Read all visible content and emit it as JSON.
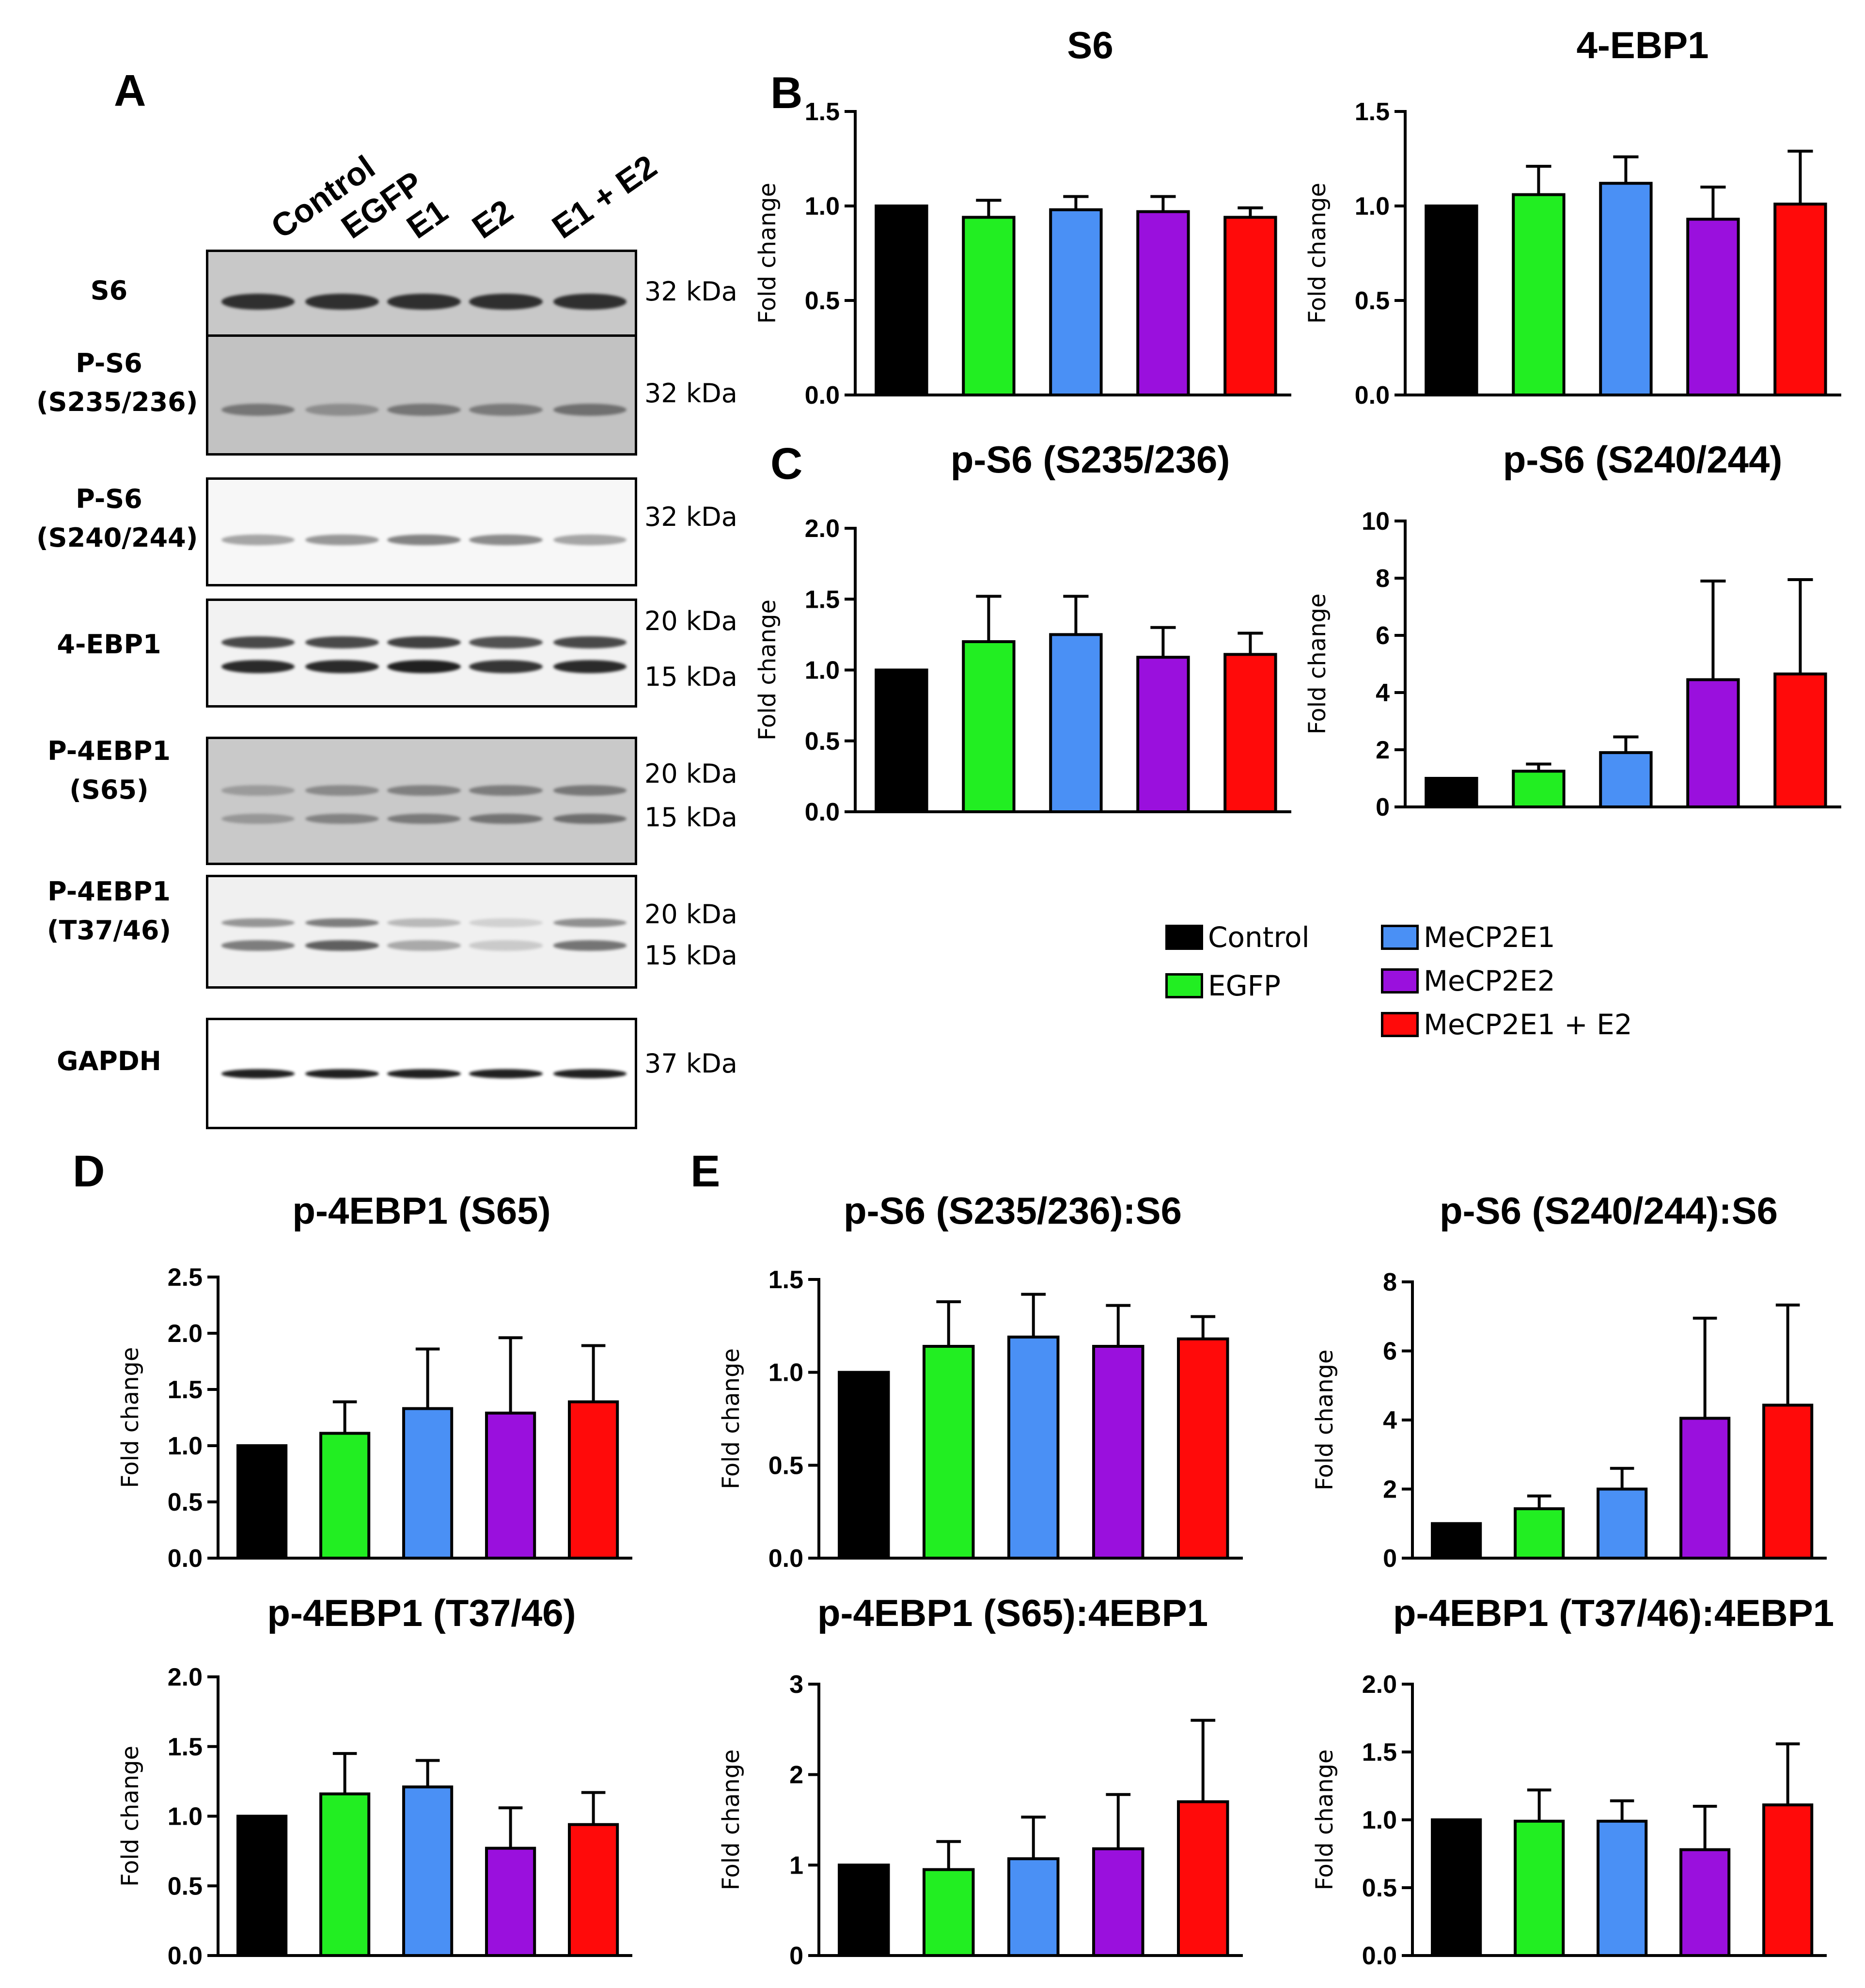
{
  "panels": {
    "a": "A",
    "b": "B",
    "c": "C",
    "d": "D",
    "e": "E"
  },
  "colors": {
    "control": "#000000",
    "egfp": "#22ee22",
    "e1": "#4a90f5",
    "e2": "#9a10dd",
    "e1e2": "#ff0a0a"
  },
  "lanes": [
    "Control",
    "EGFP",
    "E1",
    "E2",
    "E1 + E2"
  ],
  "blots": [
    {
      "label": "S6",
      "kda": [
        "32 kDa"
      ]
    },
    {
      "label": "P-S6\n(S235/236)",
      "kda": [
        "32 kDa"
      ]
    },
    {
      "label": "P-S6\n(S240/244)",
      "kda": [
        "32 kDa"
      ]
    },
    {
      "label": "4-EBP1",
      "kda": [
        "20 kDa",
        "15 kDa"
      ]
    },
    {
      "label": "P-4EBP1\n(S65)",
      "kda": [
        "20 kDa",
        "15 kDa"
      ]
    },
    {
      "label": "P-4EBP1\n(T37/46)",
      "kda": [
        "20 kDa",
        "15 kDa"
      ]
    },
    {
      "label": "GAPDH",
      "kda": [
        "37 kDa"
      ]
    }
  ],
  "legend": [
    "Control",
    "EGFP",
    "MeCP2E1",
    "MeCP2E2",
    "MeCP2E1 + E2"
  ],
  "chart_data": [
    {
      "id": "s6",
      "type": "bar",
      "title": "S6",
      "ylabel": "Fold change",
      "categories": [
        "Control",
        "EGFP",
        "MeCP2E1",
        "MeCP2E2",
        "MeCP2E1 + E2"
      ],
      "values": [
        1.0,
        0.94,
        0.98,
        0.97,
        0.94
      ],
      "errors": [
        0,
        0.09,
        0.07,
        0.08,
        0.05
      ],
      "ylim": [
        0,
        1.5
      ],
      "yticks": [
        "0.0",
        "0.5",
        "1.0",
        "1.5"
      ]
    },
    {
      "id": "ebp1",
      "type": "bar",
      "title": "4-EBP1",
      "ylabel": "Fold change",
      "categories": [
        "Control",
        "EGFP",
        "MeCP2E1",
        "MeCP2E2",
        "MeCP2E1 + E2"
      ],
      "values": [
        1.0,
        1.06,
        1.12,
        0.93,
        1.01
      ],
      "errors": [
        0,
        0.15,
        0.14,
        0.17,
        0.28
      ],
      "ylim": [
        0,
        1.5
      ],
      "yticks": [
        "0.0",
        "0.5",
        "1.0",
        "1.5"
      ]
    },
    {
      "id": "ps6a",
      "type": "bar",
      "title": "p-S6 (S235/236)",
      "ylabel": "Fold change",
      "categories": [
        "Control",
        "EGFP",
        "MeCP2E1",
        "MeCP2E2",
        "MeCP2E1 + E2"
      ],
      "values": [
        1.0,
        1.2,
        1.25,
        1.09,
        1.11
      ],
      "errors": [
        0,
        0.32,
        0.27,
        0.21,
        0.15
      ],
      "ylim": [
        0,
        2.0
      ],
      "yticks": [
        "0.0",
        "0.5",
        "1.0",
        "1.5",
        "2.0"
      ]
    },
    {
      "id": "ps6b",
      "type": "bar",
      "title": "p-S6 (S240/244)",
      "ylabel": "Fold change",
      "categories": [
        "Control",
        "EGFP",
        "MeCP2E1",
        "MeCP2E2",
        "MeCP2E1 + E2"
      ],
      "values": [
        1.0,
        1.25,
        1.9,
        4.45,
        4.65
      ],
      "errors": [
        0,
        0.25,
        0.55,
        3.45,
        3.3
      ],
      "ylim": [
        0,
        10
      ],
      "yticks": [
        "0",
        "2",
        "4",
        "6",
        "8",
        "10"
      ]
    },
    {
      "id": "p4s65",
      "type": "bar",
      "title": "p-4EBP1 (S65)",
      "ylabel": "Fold change",
      "categories": [
        "Control",
        "EGFP",
        "MeCP2E1",
        "MeCP2E2",
        "MeCP2E1 + E2"
      ],
      "values": [
        1.0,
        1.11,
        1.33,
        1.29,
        1.39
      ],
      "errors": [
        0,
        0.28,
        0.53,
        0.67,
        0.5
      ],
      "ylim": [
        0,
        2.5
      ],
      "yticks": [
        "0.0",
        "0.5",
        "1.0",
        "1.5",
        "2.0",
        "2.5"
      ]
    },
    {
      "id": "ps6a_s6",
      "type": "bar",
      "title": "p-S6 (S235/236):S6",
      "ylabel": "Fold change",
      "categories": [
        "Control",
        "EGFP",
        "MeCP2E1",
        "MeCP2E2",
        "MeCP2E1 + E2"
      ],
      "values": [
        1.0,
        1.14,
        1.19,
        1.14,
        1.18
      ],
      "errors": [
        0,
        0.24,
        0.23,
        0.22,
        0.12
      ],
      "ylim": [
        0,
        1.5
      ],
      "yticks": [
        "0.0",
        "0.5",
        "1.0",
        "1.5"
      ]
    },
    {
      "id": "ps6b_s6",
      "type": "bar",
      "title": "p-S6 (S240/244):S6",
      "ylabel": "Fold change",
      "categories": [
        "Control",
        "EGFP",
        "MeCP2E1",
        "MeCP2E2",
        "MeCP2E1 + E2"
      ],
      "values": [
        1.0,
        1.43,
        2.0,
        4.05,
        4.43
      ],
      "errors": [
        0,
        0.37,
        0.6,
        2.9,
        2.9
      ],
      "ylim": [
        0,
        8
      ],
      "yticks": [
        "0",
        "2",
        "4",
        "6",
        "8"
      ]
    },
    {
      "id": "p4t37",
      "type": "bar",
      "title": "p-4EBP1 (T37/46)",
      "ylabel": "Fold change",
      "categories": [
        "Control",
        "EGFP",
        "MeCP2E1",
        "MeCP2E2",
        "MeCP2E1 + E2"
      ],
      "values": [
        1.0,
        1.16,
        1.21,
        0.77,
        0.94
      ],
      "errors": [
        0,
        0.29,
        0.19,
        0.29,
        0.23
      ],
      "ylim": [
        0,
        2.0
      ],
      "yticks": [
        "0.0",
        "0.5",
        "1.0",
        "1.5",
        "2.0"
      ]
    },
    {
      "id": "p4s65_4ebp1",
      "type": "bar",
      "title": "p-4EBP1 (S65):4EBP1",
      "ylabel": "Fold change",
      "categories": [
        "Control",
        "EGFP",
        "MeCP2E1",
        "MeCP2E2",
        "MeCP2E1 + E2"
      ],
      "values": [
        1.0,
        0.95,
        1.07,
        1.18,
        1.7
      ],
      "errors": [
        0,
        0.31,
        0.46,
        0.6,
        0.9
      ],
      "ylim": [
        0,
        3
      ],
      "yticks": [
        "0",
        "1",
        "2",
        "3"
      ]
    },
    {
      "id": "p4t37_4ebp1",
      "type": "bar",
      "title": "p-4EBP1 (T37/46):4EBP1",
      "ylabel": "Fold change",
      "categories": [
        "Control",
        "EGFP",
        "MeCP2E1",
        "MeCP2E2",
        "MeCP2E1 + E2"
      ],
      "values": [
        1.0,
        0.99,
        0.99,
        0.78,
        1.11
      ],
      "errors": [
        0,
        0.23,
        0.15,
        0.32,
        0.45
      ],
      "ylim": [
        0,
        2.0
      ],
      "yticks": [
        "0.0",
        "0.5",
        "1.0",
        "1.5",
        "2.0"
      ]
    }
  ]
}
